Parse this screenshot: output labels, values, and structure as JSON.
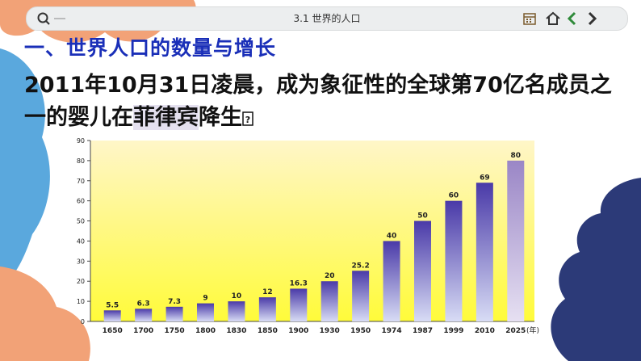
{
  "header": {
    "title": "3.1 世界的人口",
    "icons": [
      "search-icon",
      "calendar-icon",
      "home-icon",
      "chevron-left-icon",
      "chevron-right-icon"
    ]
  },
  "heading": "一、世界人口的数量与增长",
  "body": {
    "before": "2011年10月31日凌晨，成为象征性的全球第70亿名成员之一的婴儿在",
    "highlight": "菲律宾",
    "after": "降生"
  },
  "colors": {
    "heading": "#1a2fb8",
    "bar_top": "#4a3aa8",
    "bar_bottom": "#d8dcf5",
    "forecast_bar": "#9a86c6",
    "chart_bg_top": "#fff6c8",
    "chart_bg_bottom": "#fffb3a",
    "blob_orange": "#f2a277",
    "blob_blue": "#5aa8dd",
    "blob_navy": "#2c3a78"
  },
  "chart_data": {
    "type": "bar",
    "categories": [
      "1650",
      "1700",
      "1750",
      "1800",
      "1830",
      "1850",
      "1900",
      "1930",
      "1950",
      "1974",
      "1987",
      "1999",
      "2010",
      "2025"
    ],
    "values": [
      5.5,
      6.3,
      7.3,
      9,
      10,
      12,
      16.3,
      20,
      25.2,
      40,
      50,
      60,
      69,
      80
    ],
    "value_labels": [
      "5.5",
      "6.3",
      "7.3",
      "9",
      "10",
      "12",
      "16.3",
      "20",
      "25.2",
      "40",
      "50",
      "60",
      "69",
      "80"
    ],
    "x_unit": "(年)",
    "ylim": [
      0,
      90
    ],
    "yticks": [
      0,
      10,
      20,
      30,
      40,
      50,
      60,
      70,
      80,
      90
    ],
    "title": "",
    "xlabel": "",
    "ylabel": "",
    "grid": false
  }
}
